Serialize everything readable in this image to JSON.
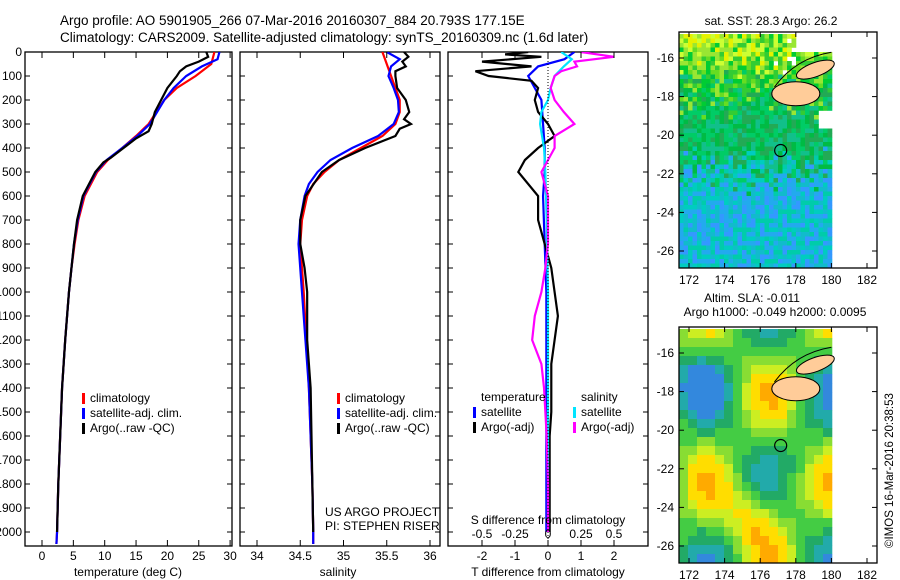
{
  "title_line1": "Argo profile: AO 5901905_266 07-Mar-2016 20160307_884 20.793S 177.15E",
  "title_line2": "Climatology: CARS2009. Satellite-adjusted climatology: synTS_20160309.nc (1.6d later)",
  "imos_stamp": "©IMOS 16-Mar-2016 20:38:53",
  "colors": {
    "climatology": "#ff0000",
    "satellite": "#0000ff",
    "argo": "#000000",
    "sal_satellite": "#00e5ff",
    "sal_argo": "#ff00ff"
  },
  "chart_data": [
    {
      "type": "line",
      "name": "temperature-profile",
      "xlabel": "temperature (deg C)",
      "xlim": [
        -2,
        31
      ],
      "xticks": [
        "0",
        "5",
        "10",
        "15",
        "20",
        "25",
        "30"
      ],
      "ylim": [
        2070,
        0
      ],
      "yticks": [
        "0",
        "100",
        "200",
        "300",
        "400",
        "500",
        "600",
        "700",
        "800",
        "900",
        "1000",
        "1100",
        "1200",
        "1300",
        "1400",
        "1500",
        "1600",
        "1700",
        "1800",
        "1900",
        "2000"
      ],
      "legend": [
        "climatology",
        "satellite-adj. clim.",
        "Argo(..raw -QC)"
      ],
      "series": [
        {
          "name": "climatology",
          "depth": [
            0,
            50,
            100,
            150,
            200,
            300,
            350,
            400,
            450,
            500,
            600,
            700,
            800,
            900,
            1000,
            1200,
            1400,
            1600,
            1800,
            2000,
            2050
          ],
          "values": [
            27.5,
            27,
            24.5,
            21.5,
            19.5,
            17,
            15,
            12.8,
            10.5,
            8.8,
            6.8,
            5.8,
            5.2,
            4.7,
            4.3,
            3.7,
            3.2,
            2.9,
            2.6,
            2.4,
            2.3
          ]
        },
        {
          "name": "satellite-adj. clim.",
          "depth": [
            0,
            30,
            60,
            100,
            150,
            200,
            300,
            350,
            400,
            450,
            500,
            600,
            700,
            800,
            900,
            1000,
            1200,
            1400,
            1600,
            1800,
            2000,
            2050
          ],
          "values": [
            28.3,
            28,
            25.5,
            23,
            21,
            19.5,
            17.2,
            15.2,
            12.8,
            10.3,
            8.6,
            6.6,
            5.7,
            5.1,
            4.7,
            4.3,
            3.7,
            3.2,
            2.9,
            2.6,
            2.4,
            2.3
          ]
        },
        {
          "name": "Argo(..raw -QC)",
          "depth": [
            0,
            20,
            40,
            60,
            80,
            100,
            150,
            200,
            250,
            300,
            330,
            360,
            400,
            440,
            460,
            500,
            600,
            700,
            800,
            900,
            1000,
            1200,
            1400,
            1600,
            1800,
            2000
          ],
          "values": [
            26.2,
            26.5,
            25,
            23,
            22,
            21.5,
            20,
            19,
            18,
            17.5,
            17,
            15,
            13,
            11,
            9.8,
            8.5,
            6.5,
            5.6,
            5.1,
            4.7,
            4.3,
            3.7,
            3.2,
            2.9,
            2.6,
            2.4
          ]
        }
      ]
    },
    {
      "type": "line",
      "name": "salinity-profile",
      "xlabel": "salinity",
      "xlim": [
        33.8,
        36.1
      ],
      "xticks": [
        "34",
        "34.5",
        "35",
        "35.5",
        "36"
      ],
      "ylim": [
        2070,
        0
      ],
      "legend": [
        "climatology",
        "satellite-adj. clim.",
        "Argo(..raw -QC)"
      ],
      "annotation": [
        "US ARGO PROJECT",
        "PI: STEPHEN RISER"
      ],
      "series": [
        {
          "name": "climatology",
          "depth": [
            0,
            50,
            100,
            150,
            200,
            250,
            300,
            350,
            400,
            450,
            500,
            550,
            600,
            700,
            800,
            900,
            1000,
            1200,
            1400,
            1600,
            1800,
            2000,
            2050
          ],
          "values": [
            35.45,
            35.5,
            35.55,
            35.6,
            35.65,
            35.65,
            35.6,
            35.45,
            35.2,
            34.95,
            34.78,
            34.65,
            34.58,
            34.52,
            34.5,
            34.52,
            34.54,
            34.57,
            34.6,
            34.62,
            34.64,
            34.65,
            34.65
          ]
        },
        {
          "name": "satellite-adj. clim.",
          "depth": [
            0,
            30,
            60,
            100,
            150,
            200,
            250,
            300,
            350,
            400,
            450,
            500,
            550,
            600,
            700,
            800,
            900,
            1000,
            1200,
            1400,
            1600,
            1800,
            2000,
            2050
          ],
          "values": [
            35.5,
            35.65,
            35.55,
            35.52,
            35.58,
            35.63,
            35.64,
            35.58,
            35.4,
            35.1,
            34.85,
            34.7,
            34.6,
            34.55,
            34.5,
            34.48,
            34.5,
            34.52,
            34.56,
            34.6,
            34.62,
            34.64,
            34.65,
            34.65
          ]
        },
        {
          "name": "Argo(..raw -QC)",
          "depth": [
            0,
            20,
            40,
            60,
            80,
            100,
            150,
            200,
            250,
            280,
            300,
            320,
            350,
            400,
            450,
            500,
            600,
            700,
            800,
            900,
            1000,
            1100,
            1200,
            1300,
            1400,
            1600,
            1800,
            2000
          ],
          "values": [
            35.7,
            35.75,
            35.68,
            35.72,
            35.6,
            35.6,
            35.62,
            35.72,
            35.76,
            35.7,
            35.78,
            35.65,
            35.6,
            35.25,
            34.95,
            34.75,
            34.56,
            34.5,
            34.5,
            34.55,
            34.58,
            34.58,
            34.58,
            34.6,
            34.62,
            34.63,
            34.64,
            34.65
          ]
        }
      ]
    },
    {
      "type": "line",
      "name": "difference-profile",
      "xlabel": "T difference from climatology",
      "xlabel2": "S difference from climatology",
      "xlim": [
        -3,
        3
      ],
      "xticks": [
        "-2",
        "-1",
        "0",
        "1",
        "2"
      ],
      "xticks2": [
        "-0.5",
        "-0.25",
        "0",
        "0.25",
        "0.5"
      ],
      "ylim": [
        2070,
        0
      ],
      "legend_headers": [
        "temperature",
        "salinity"
      ],
      "legend": [
        "satellite",
        "Argo(-adj)",
        "satellite",
        "Argo(-adj)"
      ],
      "series": [
        {
          "name": "T satellite",
          "depth": [
            0,
            30,
            60,
            100,
            150,
            200,
            300,
            400,
            500,
            600,
            800,
            1000,
            1500,
            2000
          ],
          "values": [
            0.8,
            0.5,
            -0.3,
            -0.6,
            -0.4,
            -0.2,
            -0.15,
            -0.1,
            -0.1,
            -0.15,
            -0.1,
            -0.05,
            -0.05,
            -0.05
          ]
        },
        {
          "name": "T Argo(-adj)",
          "depth": [
            0,
            10,
            20,
            40,
            60,
            80,
            100,
            120,
            150,
            200,
            250,
            300,
            350,
            400,
            450,
            500,
            600,
            700,
            800,
            900,
            1000,
            1100,
            1200,
            1300,
            1400,
            1500,
            1600,
            1800,
            2000
          ],
          "values": [
            -0.6,
            -1.3,
            -0.2,
            -2,
            -0.5,
            -2.2,
            -1.8,
            -0.5,
            -0.3,
            -0.4,
            -0.3,
            0,
            0.2,
            -0.3,
            -0.7,
            -0.9,
            -0.3,
            -0.3,
            -0.1,
            0.1,
            0.2,
            0.3,
            0.2,
            0.1,
            0.1,
            0.1,
            0.05,
            0.05,
            0.05
          ]
        },
        {
          "name": "S satellite",
          "depth": [
            0,
            30,
            60,
            100,
            150,
            200,
            250,
            300,
            400,
            500,
            700,
            1000,
            1500,
            2000
          ],
          "values": [
            0.1,
            0.18,
            0.12,
            0.05,
            0.02,
            0,
            -0.05,
            -0.06,
            -0.03,
            -0.02,
            -0.01,
            0,
            0,
            0
          ]
        },
        {
          "name": "S Argo(-adj)",
          "depth": [
            0,
            20,
            40,
            60,
            80,
            100,
            150,
            200,
            250,
            300,
            350,
            400,
            450,
            500,
            600,
            700,
            800,
            900,
            1000,
            1100,
            1200,
            1300,
            1400,
            1500,
            1600,
            1800,
            2000
          ],
          "values": [
            0.25,
            0.5,
            0.2,
            0.22,
            0.1,
            0.05,
            0.02,
            0.05,
            0.12,
            0.2,
            0.05,
            0.05,
            0,
            -0.05,
            0,
            0,
            0,
            -0.02,
            -0.05,
            -0.1,
            -0.12,
            -0.05,
            -0.03,
            -0.02,
            -0.01,
            0,
            0
          ]
        }
      ]
    },
    {
      "type": "heatmap",
      "name": "sst-map",
      "title": "sat. SST: 28.3 Argo: 26.2",
      "xticks": [
        "172",
        "174",
        "176",
        "178",
        "180",
        "182"
      ],
      "yticks": [
        "-16",
        "-18",
        "-20",
        "-22",
        "-24",
        "-26"
      ],
      "xlim": [
        171.5,
        182.6
      ],
      "ylim": [
        -26.8,
        -15.0
      ],
      "marker": {
        "lon": 177.15,
        "lat": -20.793
      }
    },
    {
      "type": "heatmap",
      "name": "sla-map",
      "title": "Altim. SLA: -0.011",
      "subtitle": "Argo h1000: -0.049 h2000: 0.0095",
      "xticks": [
        "172",
        "174",
        "176",
        "178",
        "180",
        "182"
      ],
      "yticks": [
        "-16",
        "-18",
        "-20",
        "-22",
        "-24",
        "-26"
      ],
      "xlim": [
        171.5,
        182.6
      ],
      "ylim": [
        -26.8,
        -15.0
      ],
      "marker": {
        "lon": 177.15,
        "lat": -20.793
      }
    }
  ]
}
